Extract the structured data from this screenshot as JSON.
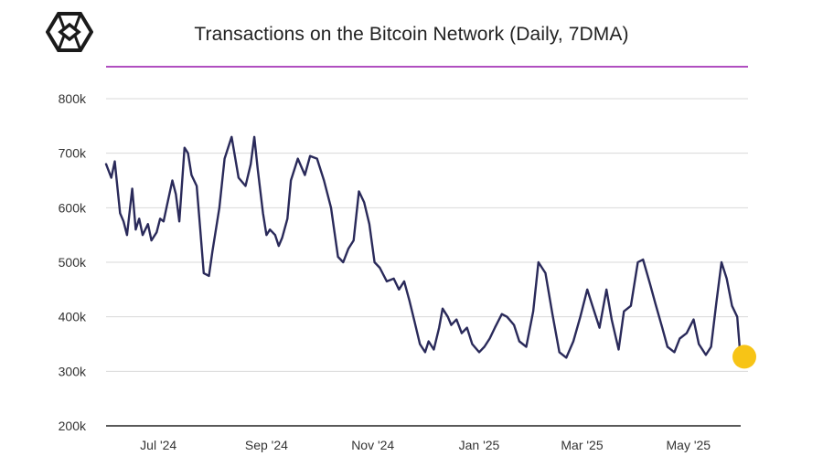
{
  "brand": {
    "logo_icon": "the-block-cube-logo-icon"
  },
  "colors": {
    "line": "#2a2a5a",
    "grid": "#d9d9d9",
    "divider": "#b04fc0",
    "endpoint": "#f7c416"
  },
  "chart_data": {
    "type": "line",
    "title": "Transactions on the Bitcoin Network (Daily, 7DMA)",
    "xlabel": "",
    "ylabel": "",
    "ylim": [
      200000,
      800000
    ],
    "yticks": [
      200000,
      300000,
      400000,
      500000,
      600000,
      700000,
      800000
    ],
    "ytick_labels": [
      "200k",
      "300k",
      "400k",
      "500k",
      "600k",
      "700k",
      "800k"
    ],
    "x_range": [
      "2024-06-01",
      "2025-05-31"
    ],
    "xticks": [
      "2024-07-01",
      "2024-09-01",
      "2024-11-01",
      "2025-01-01",
      "2025-03-01",
      "2025-05-01"
    ],
    "xtick_labels": [
      "Jul '24",
      "Sep '24",
      "Nov '24",
      "Jan '25",
      "Mar '25",
      "May '25"
    ],
    "grid": true,
    "series": [
      {
        "x": [
          "2024-06-01",
          "2024-06-04",
          "2024-06-06",
          "2024-06-09",
          "2024-06-11",
          "2024-06-13",
          "2024-06-16",
          "2024-06-18",
          "2024-06-20",
          "2024-06-22",
          "2024-06-25",
          "2024-06-27",
          "2024-06-30",
          "2024-07-02",
          "2024-07-04",
          "2024-07-06",
          "2024-07-09",
          "2024-07-11",
          "2024-07-13",
          "2024-07-16",
          "2024-07-18",
          "2024-07-20",
          "2024-07-23",
          "2024-07-25",
          "2024-07-27",
          "2024-07-30",
          "2024-08-01",
          "2024-08-05",
          "2024-08-08",
          "2024-08-12",
          "2024-08-16",
          "2024-08-20",
          "2024-08-23",
          "2024-08-25",
          "2024-08-27",
          "2024-08-30",
          "2024-09-01",
          "2024-09-03",
          "2024-09-06",
          "2024-09-08",
          "2024-09-10",
          "2024-09-13",
          "2024-09-15",
          "2024-09-19",
          "2024-09-23",
          "2024-09-26",
          "2024-09-30",
          "2024-10-04",
          "2024-10-08",
          "2024-10-12",
          "2024-10-15",
          "2024-10-18",
          "2024-10-21",
          "2024-10-24",
          "2024-10-27",
          "2024-10-30",
          "2024-11-02",
          "2024-11-05",
          "2024-11-09",
          "2024-11-13",
          "2024-11-16",
          "2024-11-19",
          "2024-11-22",
          "2024-11-25",
          "2024-11-28",
          "2024-12-01",
          "2024-12-03",
          "2024-12-06",
          "2024-12-09",
          "2024-12-11",
          "2024-12-14",
          "2024-12-16",
          "2024-12-19",
          "2024-12-22",
          "2024-12-25",
          "2024-12-28",
          "2025-01-01",
          "2025-01-04",
          "2025-01-07",
          "2025-01-10",
          "2025-01-14",
          "2025-01-17",
          "2025-01-21",
          "2025-01-24",
          "2025-01-28",
          "2025-02-01",
          "2025-02-04",
          "2025-02-08",
          "2025-02-12",
          "2025-02-16",
          "2025-02-20",
          "2025-02-24",
          "2025-02-28",
          "2025-03-04",
          "2025-03-07",
          "2025-03-11",
          "2025-03-15",
          "2025-03-18",
          "2025-03-22",
          "2025-03-25",
          "2025-03-29",
          "2025-04-02",
          "2025-04-05",
          "2025-04-09",
          "2025-04-12",
          "2025-04-16",
          "2025-04-19",
          "2025-04-23",
          "2025-04-26",
          "2025-04-30",
          "2025-05-04",
          "2025-05-07",
          "2025-05-11",
          "2025-05-14",
          "2025-05-17",
          "2025-05-20",
          "2025-05-23",
          "2025-05-26",
          "2025-05-29",
          "2025-05-31"
        ],
        "values": [
          680000,
          655000,
          685000,
          590000,
          575000,
          550000,
          635000,
          560000,
          580000,
          550000,
          570000,
          540000,
          555000,
          580000,
          575000,
          605000,
          650000,
          625000,
          575000,
          710000,
          700000,
          660000,
          640000,
          560000,
          480000,
          475000,
          520000,
          600000,
          690000,
          730000,
          655000,
          640000,
          680000,
          730000,
          670000,
          590000,
          550000,
          560000,
          550000,
          530000,
          545000,
          580000,
          650000,
          690000,
          660000,
          695000,
          690000,
          650000,
          600000,
          510000,
          500000,
          525000,
          540000,
          630000,
          610000,
          570000,
          500000,
          490000,
          465000,
          470000,
          450000,
          465000,
          430000,
          390000,
          350000,
          335000,
          355000,
          340000,
          380000,
          415000,
          400000,
          385000,
          395000,
          370000,
          380000,
          350000,
          335000,
          345000,
          360000,
          380000,
          405000,
          400000,
          385000,
          355000,
          345000,
          410000,
          500000,
          480000,
          405000,
          335000,
          325000,
          355000,
          400000,
          450000,
          420000,
          380000,
          450000,
          395000,
          340000,
          410000,
          420000,
          500000,
          505000,
          460000,
          425000,
          380000,
          345000,
          335000,
          360000,
          370000,
          395000,
          350000,
          330000,
          345000,
          425000,
          500000,
          470000,
          420000,
          400000,
          320000
        ]
      }
    ]
  }
}
